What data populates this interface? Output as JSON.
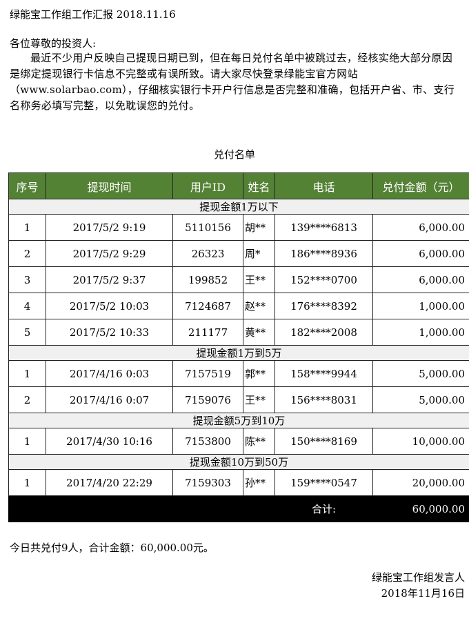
{
  "doc": {
    "title": "绿能宝工作组工作汇报 2018.11.16",
    "greeting": "各位尊敬的投资人:",
    "paragraph": "最近不少用户反映自己提现日期已到，但在每日兑付名单中被跳过去，经核实绝大部分原因是绑定提现银行卡信息不完整或有误所致。请大家尽快登录绿能宝官方网站（www.solarbao.com），仔细核实银行卡开户行信息是否完整和准确，包括开户省、市、支行名称务必填写完整，以免耽误您的兑付。",
    "table_title": "兑付名单",
    "summary": "今日共兑付9人，合计金额：60,000.00元。",
    "signer": "绿能宝工作组发言人",
    "sign_date": "2018年11月16日"
  },
  "colors": {
    "header_bg": "#548235",
    "total_bg": "#000000",
    "group_bg": "#f0f0f0"
  },
  "table": {
    "headers": [
      "序号",
      "提现时间",
      "用户ID",
      "姓名",
      "电话",
      "兑付金额（元）"
    ],
    "groups": [
      {
        "label": "提现金额1万以下",
        "rows": [
          [
            "1",
            "2017/5/2 9:19",
            "5110156",
            "胡**",
            "139****6813",
            "6,000.00"
          ],
          [
            "2",
            "2017/5/2 9:29",
            "26323",
            "周*",
            "186****8936",
            "6,000.00"
          ],
          [
            "3",
            "2017/5/2 9:37",
            "199852",
            "王**",
            "152****0700",
            "6,000.00"
          ],
          [
            "4",
            "2017/5/2 10:03",
            "7124687",
            "赵**",
            "176****8392",
            "1,000.00"
          ],
          [
            "5",
            "2017/5/2 10:33",
            "211177",
            "黄**",
            "182****2008",
            "1,000.00"
          ]
        ]
      },
      {
        "label": "提现金额1万到5万",
        "rows": [
          [
            "1",
            "2017/4/16 0:03",
            "7157519",
            "郭**",
            "158****9944",
            "5,000.00"
          ],
          [
            "2",
            "2017/4/16 0:07",
            "7159076",
            "王**",
            "156****8031",
            "5,000.00"
          ]
        ]
      },
      {
        "label": "提现金额5万到10万",
        "rows": [
          [
            "1",
            "2017/4/30 10:16",
            "7153800",
            "陈**",
            "150****8169",
            "10,000.00"
          ]
        ]
      },
      {
        "label": "提现金额10万到50万",
        "rows": [
          [
            "1",
            "2017/4/20 22:29",
            "7159303",
            "孙**",
            "159****0547",
            "20,000.00"
          ]
        ]
      }
    ],
    "total_label": "合计:",
    "total_value": "60,000.00"
  }
}
